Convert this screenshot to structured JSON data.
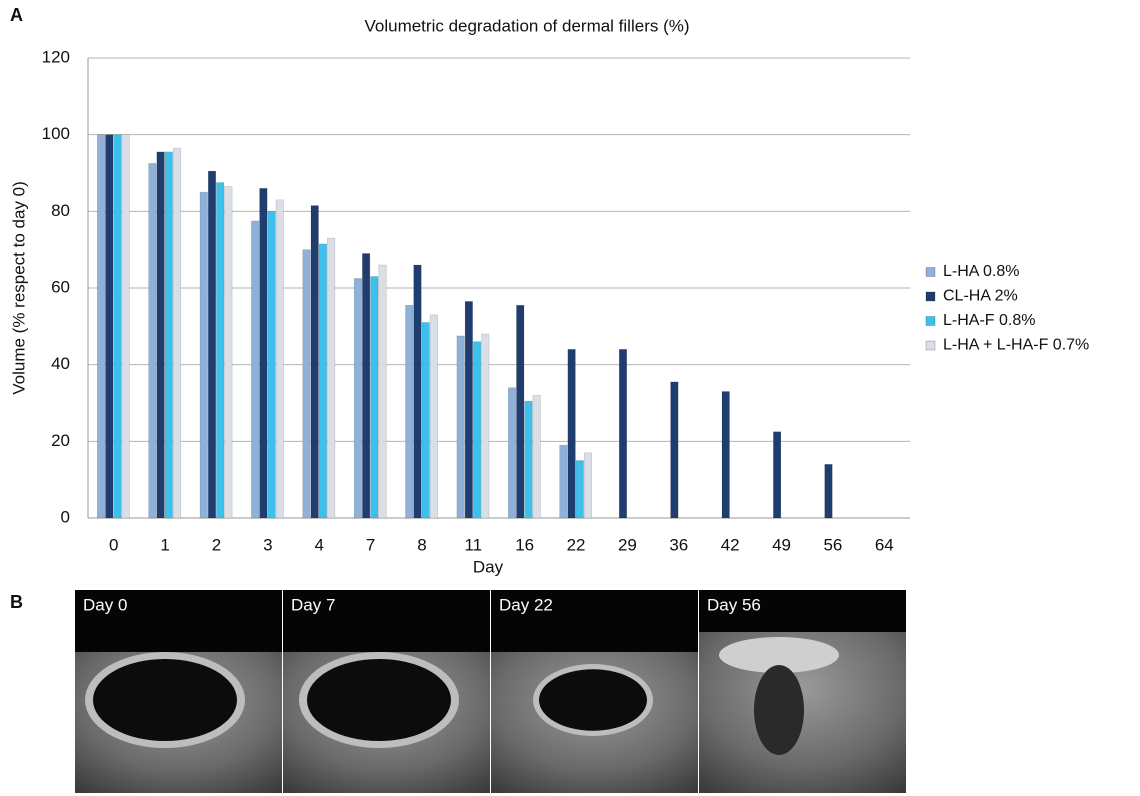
{
  "chart_data": {
    "type": "bar",
    "title": "Volumetric degradation of dermal fillers (%)",
    "x_label": "Day",
    "y_label": "Volume (% respect to day 0)",
    "categories": [
      "0",
      "1",
      "2",
      "3",
      "4",
      "7",
      "8",
      "11",
      "16",
      "22",
      "29",
      "36",
      "42",
      "49",
      "56",
      "64"
    ],
    "series": [
      {
        "name": "L-HA  0.8%",
        "color": "#8fb0d8",
        "values": [
          100,
          92.5,
          85,
          77.5,
          70,
          62.5,
          55.5,
          47.5,
          34,
          19,
          null,
          null,
          null,
          null,
          null,
          null
        ]
      },
      {
        "name": "CL-HA 2%",
        "color": "#1f3d6e",
        "values": [
          100,
          95.5,
          90.5,
          86,
          81.5,
          69,
          66,
          56.5,
          55.5,
          44,
          44,
          35.5,
          33,
          22.5,
          14,
          null
        ]
      },
      {
        "name": "L-HA-F 0.8%",
        "color": "#3ec0ec",
        "values": [
          100,
          95.5,
          87.5,
          80,
          71.5,
          63,
          51,
          46,
          30.5,
          15,
          null,
          null,
          null,
          null,
          null,
          null
        ]
      },
      {
        "name": "L-HA + L-HA-F 0.7%",
        "color": "#d9dee7",
        "values": [
          100,
          96.5,
          86.5,
          83,
          73,
          66,
          53,
          48,
          32,
          17,
          null,
          null,
          null,
          null,
          null,
          null
        ]
      }
    ],
    "ylim": [
      0,
      120
    ],
    "yticks": [
      0,
      20,
      40,
      60,
      80,
      100,
      120
    ],
    "grid": true
  },
  "panel_labels": [
    "A",
    "B"
  ],
  "panel_b": {
    "images": [
      {
        "label": "Day 0"
      },
      {
        "label": "Day 7"
      },
      {
        "label": "Day 22"
      },
      {
        "label": "Day 56"
      }
    ]
  }
}
